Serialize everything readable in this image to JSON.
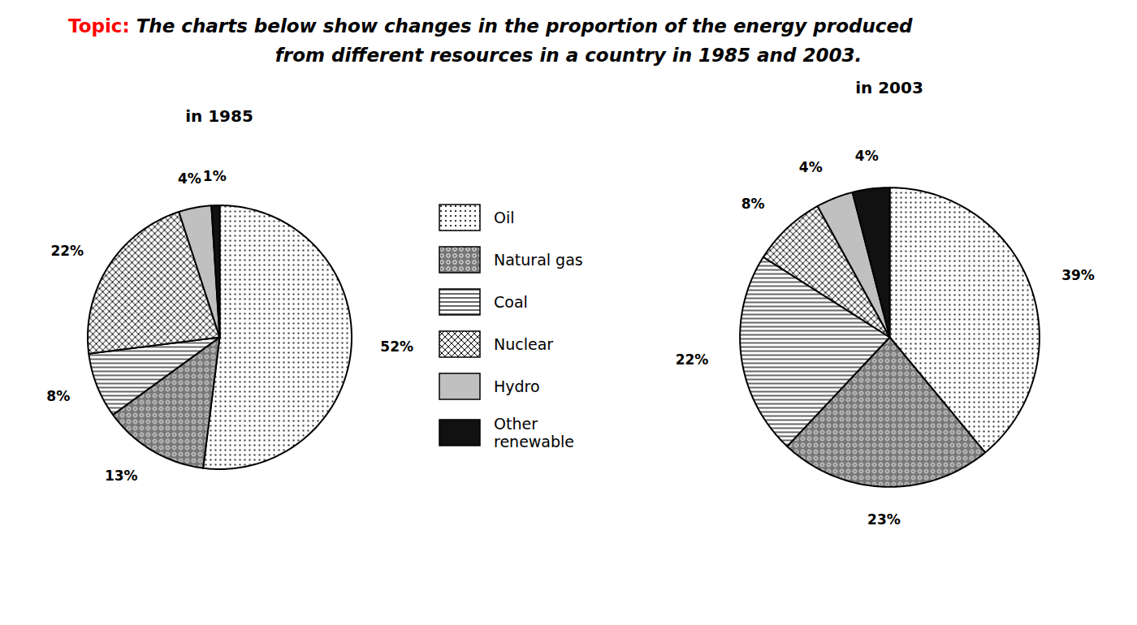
{
  "title": "Topic: The charts below show changes in the proportion of the energy produced\nfrom different resources in a country in 1985 and 2003.",
  "chart_data": [
    {
      "type": "pie",
      "title": "in 1985",
      "categories": [
        "Oil",
        "Natural gas",
        "Coal",
        "Nuclear",
        "Hydro",
        "Other\nrenewable"
      ],
      "values": [
        52,
        13,
        8,
        22,
        4,
        1
      ],
      "value_labels": [
        "52%",
        "13%",
        "8%",
        "22%",
        "4%",
        "1%"
      ],
      "colors": [
        "white",
        "#777777",
        "white",
        "white",
        "#c0c0c0",
        "#111111"
      ],
      "data_labels": true,
      "legend": "center"
    },
    {
      "type": "pie",
      "title": "in 2003",
      "categories": [
        "Oil",
        "Natural gas",
        "Coal",
        "Nuclear",
        "Hydro",
        "Other\nrenewable"
      ],
      "values": [
        39,
        23,
        22,
        8,
        4,
        4
      ],
      "value_labels": [
        "39%",
        "23%",
        "22%",
        "8%",
        "4%",
        "4%"
      ],
      "colors": [
        "white",
        "#777777",
        "white",
        "white",
        "#c0c0c0",
        "#111111"
      ],
      "data_labels": true,
      "legend": "center"
    }
  ]
}
